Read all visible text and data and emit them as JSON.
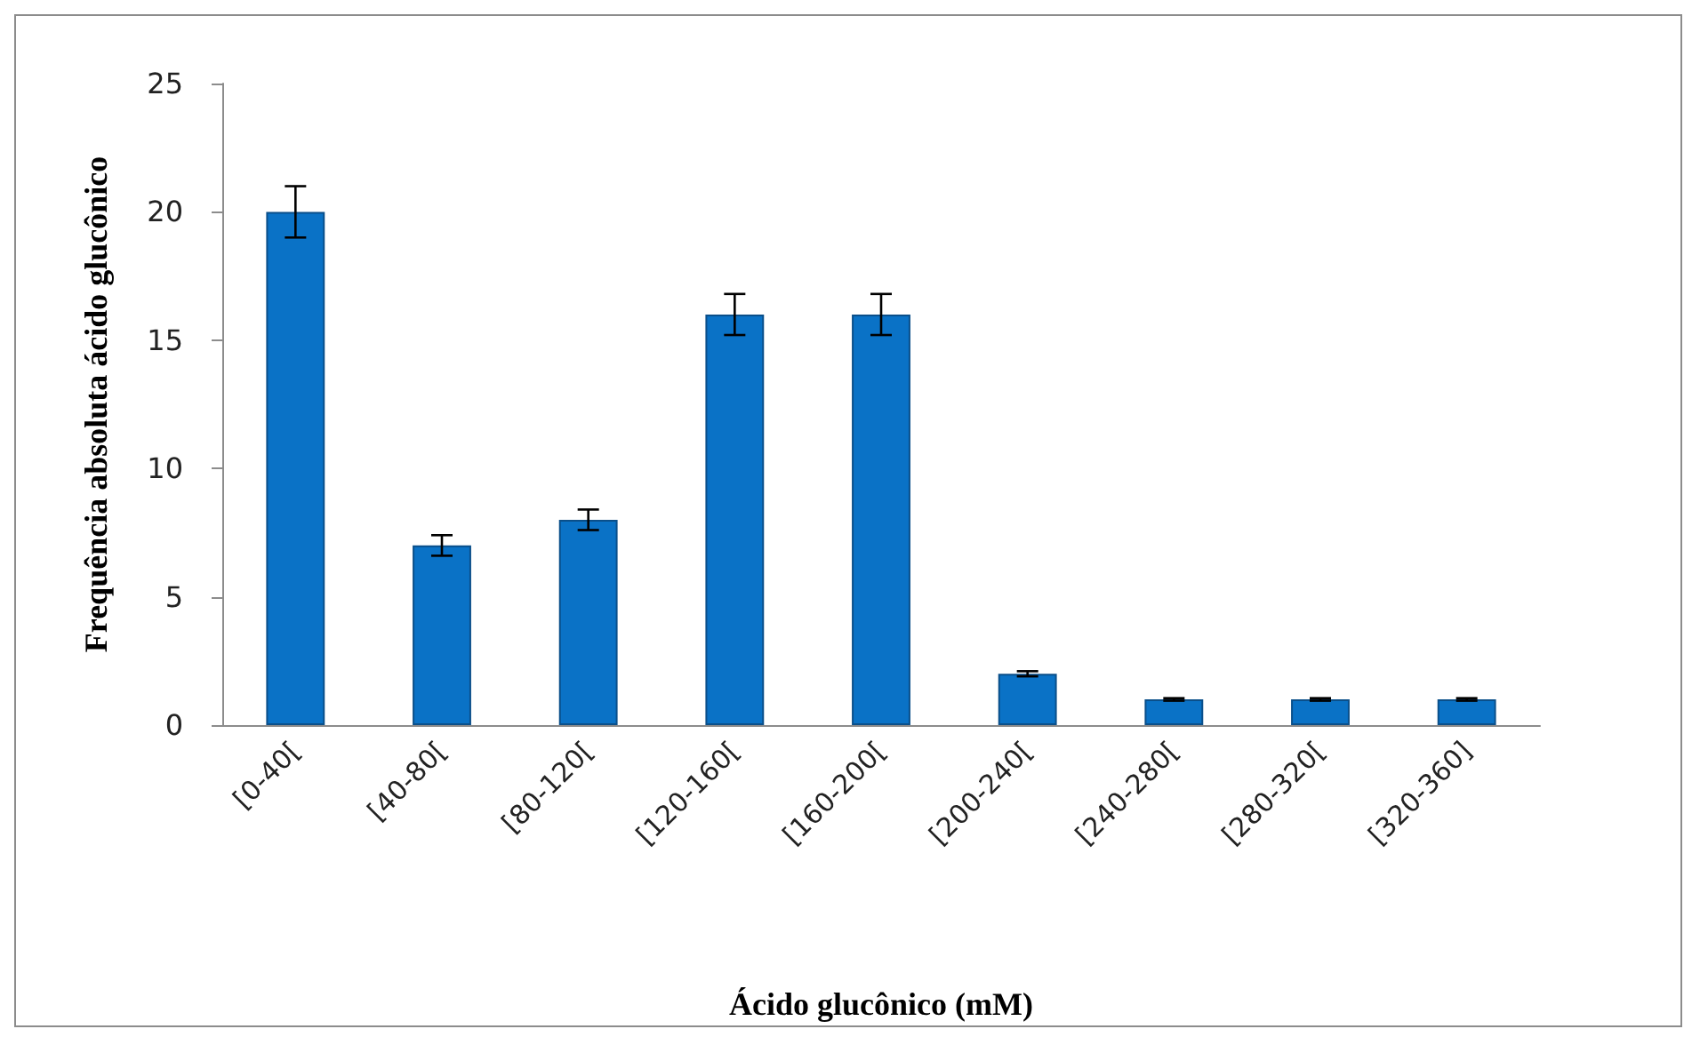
{
  "chart_data": {
    "type": "bar",
    "xlabel": "Ácido glucônico (mM)",
    "ylabel": "Frequência absoluta ácido glucônico",
    "categories": [
      "[0-40[",
      "[40-80[",
      "[80-120[",
      "[120-160[",
      "[160-200[",
      "[200-240[",
      "[240-280[",
      "[280-320[",
      "[320-360]"
    ],
    "values": [
      20,
      7,
      8,
      16,
      16,
      2,
      1,
      1,
      1
    ],
    "errors": [
      1,
      0.4,
      0.4,
      0.8,
      0.8,
      0.1,
      0.05,
      0.05,
      0.05
    ],
    "color": "#0a72c6",
    "ylim": [
      0,
      25
    ],
    "yticks": [
      0,
      5,
      10,
      15,
      20,
      25
    ],
    "grid": false
  }
}
